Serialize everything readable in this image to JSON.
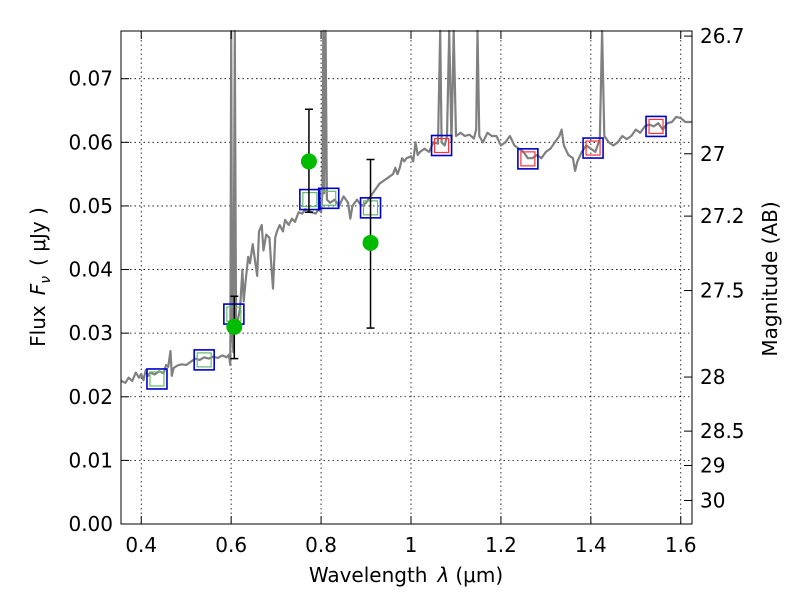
{
  "chart_data": {
    "type": "line",
    "xlabel_text": "Wavelength",
    "xlabel_symbol": "λ",
    "xlabel_unit": "(μm)",
    "ylabel_text": "Flux",
    "ylabel_symbol": "F",
    "ylabel_symbol_sub": "ν",
    "ylabel_unit": "( μJy )",
    "y2label": "Magnitude (AB)",
    "xlim": [
      0.355,
      1.625
    ],
    "ylim": [
      0.0,
      0.0775
    ],
    "xticks": [
      0.4,
      0.6,
      0.8,
      1.0,
      1.2,
      1.4,
      1.6
    ],
    "xtick_labels": [
      "0.4",
      "0.6",
      "0.8",
      "1",
      "1.2",
      "1.4",
      "1.6"
    ],
    "yticks": [
      0.0,
      0.01,
      0.02,
      0.03,
      0.04,
      0.05,
      0.06,
      0.07
    ],
    "ytick_labels": [
      "0.00",
      "0.01",
      "0.02",
      "0.03",
      "0.04",
      "0.05",
      "0.06",
      "0.07"
    ],
    "y2ticks": [
      {
        "label": "26.7",
        "flux": 0.0767
      },
      {
        "label": "27",
        "flux": 0.0582
      },
      {
        "label": "27.2",
        "flux": 0.0484
      },
      {
        "label": "27.5",
        "flux": 0.0367
      },
      {
        "label": "28",
        "flux": 0.0231
      },
      {
        "label": "28.5",
        "flux": 0.0146
      },
      {
        "label": "29",
        "flux": 0.0092
      },
      {
        "label": "30",
        "flux": 0.0037
      }
    ],
    "grid": true,
    "series": [
      {
        "type": "line",
        "color": "#808080",
        "points": [
          [
            0.355,
            0.0225
          ],
          [
            0.365,
            0.0222
          ],
          [
            0.372,
            0.023
          ],
          [
            0.38,
            0.0225
          ],
          [
            0.388,
            0.0238
          ],
          [
            0.395,
            0.023
          ],
          [
            0.4,
            0.0236
          ],
          [
            0.405,
            0.0226
          ],
          [
            0.41,
            0.0242
          ],
          [
            0.415,
            0.0233
          ],
          [
            0.42,
            0.0238
          ],
          [
            0.43,
            0.0235
          ],
          [
            0.44,
            0.024
          ],
          [
            0.45,
            0.0237
          ],
          [
            0.455,
            0.025
          ],
          [
            0.46,
            0.0247
          ],
          [
            0.465,
            0.0272
          ],
          [
            0.468,
            0.0233
          ],
          [
            0.472,
            0.0245
          ],
          [
            0.48,
            0.0249
          ],
          [
            0.49,
            0.0251
          ],
          [
            0.5,
            0.025
          ],
          [
            0.51,
            0.0255
          ],
          [
            0.52,
            0.026
          ],
          [
            0.53,
            0.0258
          ],
          [
            0.54,
            0.0262
          ],
          [
            0.55,
            0.026
          ],
          [
            0.56,
            0.0263
          ],
          [
            0.57,
            0.0261
          ],
          [
            0.58,
            0.0265
          ],
          [
            0.59,
            0.0262
          ],
          [
            0.595,
            0.0266
          ],
          [
            0.598,
            0.025
          ],
          [
            0.6,
            0.0775
          ],
          [
            0.602,
            0.03
          ],
          [
            0.605,
            0.027
          ],
          [
            0.608,
            0.0775
          ],
          [
            0.611,
            0.03
          ],
          [
            0.615,
            0.032
          ],
          [
            0.62,
            0.034
          ],
          [
            0.625,
            0.04
          ],
          [
            0.628,
            0.035
          ],
          [
            0.632,
            0.038
          ],
          [
            0.638,
            0.042
          ],
          [
            0.642,
            0.041
          ],
          [
            0.648,
            0.044
          ],
          [
            0.652,
            0.042
          ],
          [
            0.658,
            0.039
          ],
          [
            0.662,
            0.046
          ],
          [
            0.668,
            0.047
          ],
          [
            0.672,
            0.043
          ],
          [
            0.678,
            0.0455
          ],
          [
            0.685,
            0.045
          ],
          [
            0.69,
            0.04
          ],
          [
            0.693,
            0.037
          ],
          [
            0.698,
            0.045
          ],
          [
            0.702,
            0.046
          ],
          [
            0.708,
            0.047
          ],
          [
            0.715,
            0.046
          ],
          [
            0.72,
            0.0478
          ],
          [
            0.728,
            0.047
          ],
          [
            0.735,
            0.048
          ],
          [
            0.742,
            0.0475
          ],
          [
            0.75,
            0.049
          ],
          [
            0.758,
            0.0488
          ],
          [
            0.765,
            0.0495
          ],
          [
            0.772,
            0.0492
          ],
          [
            0.78,
            0.049
          ],
          [
            0.788,
            0.0488
          ],
          [
            0.795,
            0.0495
          ],
          [
            0.8,
            0.049
          ],
          [
            0.803,
            0.052
          ],
          [
            0.805,
            0.0775
          ],
          [
            0.807,
            0.052
          ],
          [
            0.81,
            0.0775
          ],
          [
            0.813,
            0.051
          ],
          [
            0.82,
            0.0505
          ],
          [
            0.83,
            0.051
          ],
          [
            0.84,
            0.05
          ],
          [
            0.85,
            0.0515
          ],
          [
            0.86,
            0.0505
          ],
          [
            0.865,
            0.048
          ],
          [
            0.87,
            0.05
          ],
          [
            0.88,
            0.051
          ],
          [
            0.89,
            0.05
          ],
          [
            0.9,
            0.0505
          ],
          [
            0.91,
            0.0515
          ],
          [
            0.92,
            0.0525
          ],
          [
            0.93,
            0.0535
          ],
          [
            0.94,
            0.054
          ],
          [
            0.95,
            0.0545
          ],
          [
            0.96,
            0.055
          ],
          [
            0.965,
            0.056
          ],
          [
            0.97,
            0.055
          ],
          [
            0.975,
            0.056
          ],
          [
            0.98,
            0.0575
          ],
          [
            0.985,
            0.057
          ],
          [
            0.99,
            0.0575
          ],
          [
            1.0,
            0.0578
          ],
          [
            1.005,
            0.057
          ],
          [
            1.01,
            0.06
          ],
          [
            1.015,
            0.058
          ],
          [
            1.02,
            0.0585
          ],
          [
            1.03,
            0.059
          ],
          [
            1.04,
            0.0585
          ],
          [
            1.05,
            0.06
          ],
          [
            1.06,
            0.0598
          ],
          [
            1.065,
            0.0775
          ],
          [
            1.068,
            0.06
          ],
          [
            1.075,
            0.0595
          ],
          [
            1.08,
            0.061
          ],
          [
            1.085,
            0.0775
          ],
          [
            1.09,
            0.06
          ],
          [
            1.095,
            0.0775
          ],
          [
            1.1,
            0.061
          ],
          [
            1.11,
            0.0615
          ],
          [
            1.12,
            0.061
          ],
          [
            1.13,
            0.0612
          ],
          [
            1.14,
            0.0606
          ],
          [
            1.145,
            0.062
          ],
          [
            1.148,
            0.0775
          ],
          [
            1.152,
            0.061
          ],
          [
            1.16,
            0.06
          ],
          [
            1.17,
            0.0615
          ],
          [
            1.18,
            0.061
          ],
          [
            1.19,
            0.061
          ],
          [
            1.2,
            0.0595
          ],
          [
            1.21,
            0.06
          ],
          [
            1.22,
            0.061
          ],
          [
            1.23,
            0.0595
          ],
          [
            1.24,
            0.059
          ],
          [
            1.25,
            0.0585
          ],
          [
            1.26,
            0.0575
          ],
          [
            1.27,
            0.0575
          ],
          [
            1.28,
            0.058
          ],
          [
            1.29,
            0.0575
          ],
          [
            1.3,
            0.0585
          ],
          [
            1.31,
            0.059
          ],
          [
            1.32,
            0.06
          ],
          [
            1.33,
            0.061
          ],
          [
            1.335,
            0.062
          ],
          [
            1.34,
            0.0595
          ],
          [
            1.35,
            0.058
          ],
          [
            1.36,
            0.0575
          ],
          [
            1.365,
            0.0555
          ],
          [
            1.37,
            0.057
          ],
          [
            1.38,
            0.0585
          ],
          [
            1.39,
            0.0595
          ],
          [
            1.4,
            0.059
          ],
          [
            1.41,
            0.0585
          ],
          [
            1.42,
            0.0605
          ],
          [
            1.425,
            0.0775
          ],
          [
            1.43,
            0.061
          ],
          [
            1.44,
            0.06
          ],
          [
            1.45,
            0.0595
          ],
          [
            1.46,
            0.06
          ],
          [
            1.47,
            0.061
          ],
          [
            1.48,
            0.0605
          ],
          [
            1.49,
            0.061
          ],
          [
            1.5,
            0.062
          ],
          [
            1.51,
            0.0615
          ],
          [
            1.52,
            0.0625
          ],
          [
            1.53,
            0.0628
          ],
          [
            1.54,
            0.0625
          ],
          [
            1.55,
            0.063
          ],
          [
            1.56,
            0.062
          ],
          [
            1.57,
            0.063
          ],
          [
            1.58,
            0.0632
          ],
          [
            1.59,
            0.064
          ],
          [
            1.6,
            0.0638
          ],
          [
            1.61,
            0.0632
          ],
          [
            1.625,
            0.0632
          ]
        ]
      },
      {
        "type": "scatter",
        "color": "#00bb00",
        "points": [
          {
            "x": 0.607,
            "y": 0.031,
            "yerr_low": 0.026,
            "yerr_high": 0.0358
          },
          {
            "x": 0.773,
            "y": 0.057,
            "yerr_low": 0.049,
            "yerr_high": 0.0652
          },
          {
            "x": 0.91,
            "y": 0.0442,
            "yerr_low": 0.0308,
            "yerr_high": 0.0573
          }
        ]
      }
    ],
    "model_boxes": [
      {
        "x": 0.435,
        "y": 0.0228,
        "edge": "#0000cc",
        "inner": "#66bb66"
      },
      {
        "x": 0.54,
        "y": 0.0258,
        "edge": "#0000cc",
        "inner": "#66bb66"
      },
      {
        "x": 0.606,
        "y": 0.033,
        "edge": "#0000cc",
        "inner": "#66bb66"
      },
      {
        "x": 0.775,
        "y": 0.051,
        "edge": "#0000cc",
        "inner": "#66bb66"
      },
      {
        "x": 0.817,
        "y": 0.0512,
        "edge": "#0000cc",
        "inner": "#66bb66"
      },
      {
        "x": 0.91,
        "y": 0.0497,
        "edge": "#0000cc",
        "inner": "#66bb66"
      },
      {
        "x": 1.068,
        "y": 0.0595,
        "edge": "#0000cc",
        "inner": "#ff3333"
      },
      {
        "x": 1.26,
        "y": 0.0574,
        "edge": "#0000cc",
        "inner": "#ff3333"
      },
      {
        "x": 1.405,
        "y": 0.0591,
        "edge": "#0000cc",
        "inner": "#ff3333"
      },
      {
        "x": 1.545,
        "y": 0.0625,
        "edge": "#0000cc",
        "inner": "#ff3333"
      }
    ]
  }
}
